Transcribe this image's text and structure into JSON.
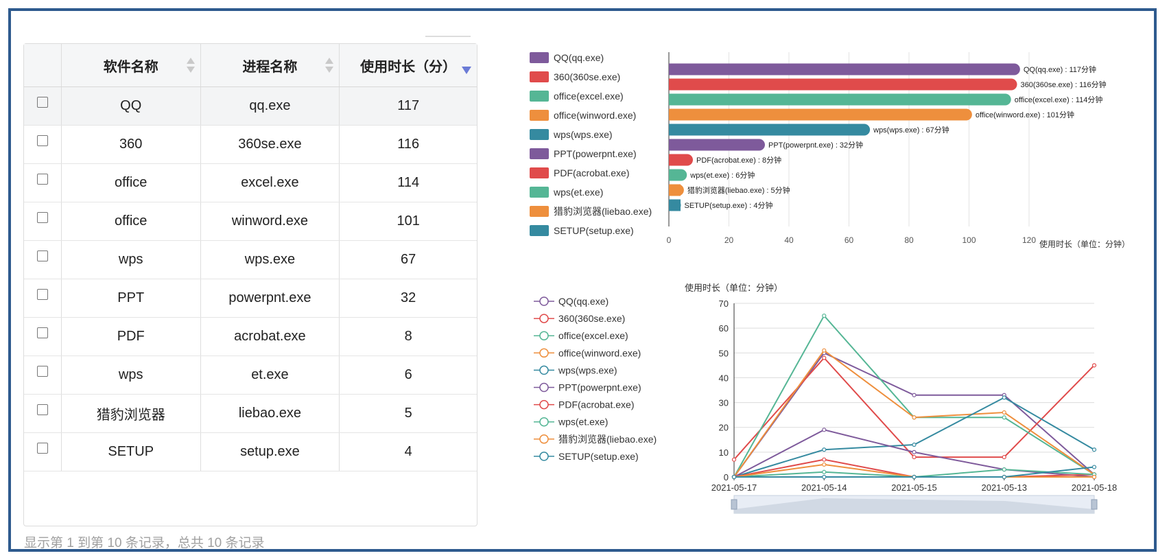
{
  "table": {
    "headers": [
      "软件名称",
      "进程名称",
      "使用时长（分）"
    ],
    "rows": [
      {
        "name": "QQ",
        "process": "qq.exe",
        "minutes": "117"
      },
      {
        "name": "360",
        "process": "360se.exe",
        "minutes": "116"
      },
      {
        "name": "office",
        "process": "excel.exe",
        "minutes": "114"
      },
      {
        "name": "office",
        "process": "winword.exe",
        "minutes": "101"
      },
      {
        "name": "wps",
        "process": "wps.exe",
        "minutes": "67"
      },
      {
        "name": "PPT",
        "process": "powerpnt.exe",
        "minutes": "32"
      },
      {
        "name": "PDF",
        "process": "acrobat.exe",
        "minutes": "8"
      },
      {
        "name": "wps",
        "process": "et.exe",
        "minutes": "6"
      },
      {
        "name": "猎豹浏览器",
        "process": "liebao.exe",
        "minutes": "5"
      },
      {
        "name": "SETUP",
        "process": "setup.exe",
        "minutes": "4"
      }
    ],
    "footer": "显示第 1 到第 10 条记录，总共 10 条记录"
  },
  "chart_data": [
    {
      "type": "bar",
      "orientation": "horizontal",
      "categories": [
        "QQ(qq.exe)",
        "360(360se.exe)",
        "office(excel.exe)",
        "office(winword.exe)",
        "wps(wps.exe)",
        "PPT(powerpnt.exe)",
        "PDF(acrobat.exe)",
        "wps(et.exe)",
        "猎豹浏览器(liebao.exe)",
        "SETUP(setup.exe)"
      ],
      "values": [
        117,
        116,
        114,
        101,
        67,
        32,
        8,
        6,
        5,
        4
      ],
      "data_labels": [
        "QQ(qq.exe) : 117分钟",
        "360(360se.exe) : 116分钟",
        "office(excel.exe) : 114分钟",
        "office(winword.exe) : 101分钟",
        "wps(wps.exe) : 67分钟",
        "PPT(powerpnt.exe) : 32分钟",
        "PDF(acrobat.exe) : 8分钟",
        "wps(et.exe) : 6分钟",
        "猎豹浏览器(liebao.exe) : 5分钟",
        "SETUP(setup.exe) : 4分钟"
      ],
      "xlabel": "使用时长（单位：分钟）",
      "xlim": [
        0,
        120
      ],
      "xticks": [
        0,
        20,
        40,
        60,
        80,
        100,
        120
      ],
      "colors": [
        "#7e5a9b",
        "#e04b4b",
        "#55b695",
        "#ee8f3d",
        "#358aa0",
        "#7e5a9b",
        "#e04b4b",
        "#55b695",
        "#ee8f3d",
        "#358aa0"
      ],
      "legend_position": "left",
      "grid": true
    },
    {
      "type": "line",
      "x": [
        "2021-05-17",
        "2021-05-14",
        "2021-05-15",
        "2021-05-13",
        "2021-05-18"
      ],
      "ylabel": "使用时长（单位：分钟）",
      "ylim": [
        0,
        70
      ],
      "yticks": [
        0,
        10,
        20,
        30,
        40,
        50,
        60,
        70
      ],
      "series": [
        {
          "name": "QQ(qq.exe)",
          "color": "#7e5a9b",
          "values": [
            0,
            50,
            33,
            33,
            1
          ]
        },
        {
          "name": "360(360se.exe)",
          "color": "#e04b4b",
          "values": [
            7,
            48,
            8,
            8,
            45
          ]
        },
        {
          "name": "office(excel.exe)",
          "color": "#55b695",
          "values": [
            0,
            65,
            24,
            24,
            1
          ]
        },
        {
          "name": "office(winword.exe)",
          "color": "#ee8f3d",
          "values": [
            0,
            51,
            24,
            26,
            1
          ]
        },
        {
          "name": "wps(wps.exe)",
          "color": "#358aa0",
          "values": [
            0,
            11,
            13,
            32,
            11
          ]
        },
        {
          "name": "PPT(powerpnt.exe)",
          "color": "#7e5a9b",
          "values": [
            0,
            19,
            10,
            3,
            0
          ]
        },
        {
          "name": "PDF(acrobat.exe)",
          "color": "#e04b4b",
          "values": [
            0,
            7,
            0,
            0,
            1
          ]
        },
        {
          "name": "wps(et.exe)",
          "color": "#55b695",
          "values": [
            0,
            2,
            0,
            3,
            1
          ]
        },
        {
          "name": "猎豹浏览器(liebao.exe)",
          "color": "#ee8f3d",
          "values": [
            0,
            5,
            0,
            0,
            0
          ]
        },
        {
          "name": "SETUP(setup.exe)",
          "color": "#358aa0",
          "values": [
            0,
            0,
            0,
            0,
            4
          ]
        }
      ],
      "legend_position": "left",
      "grid": true,
      "datazoom": true
    }
  ]
}
